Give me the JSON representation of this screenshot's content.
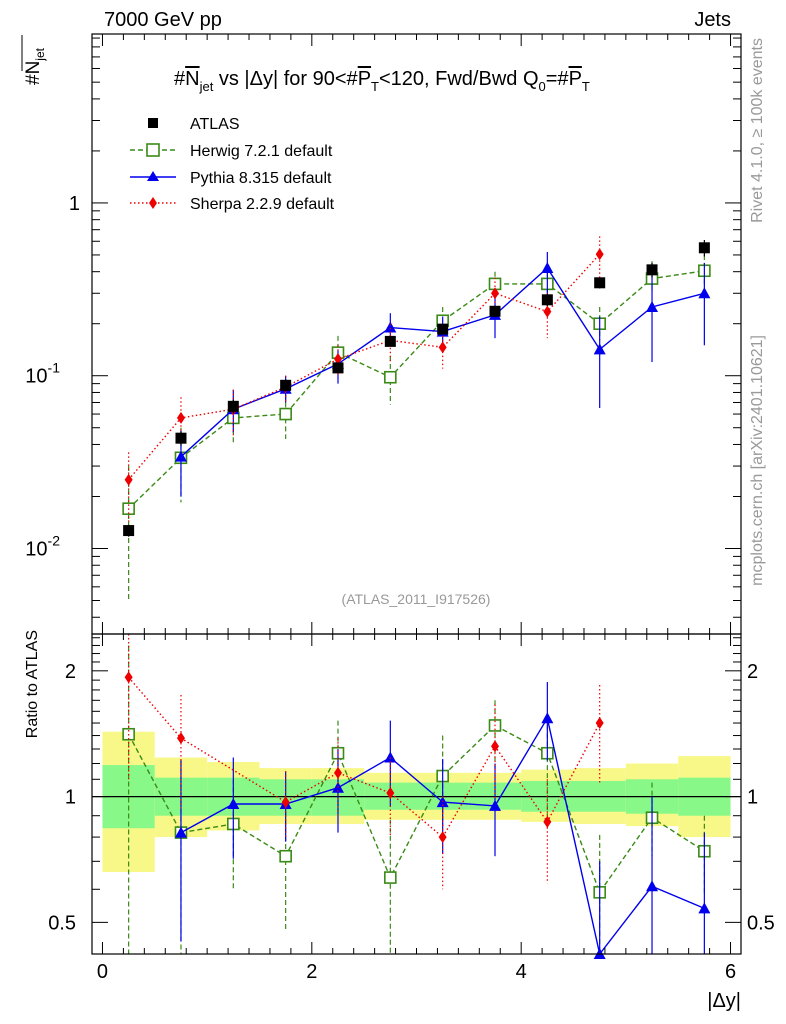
{
  "header": {
    "left": "7000 GeV pp",
    "right": "Jets"
  },
  "side_labels": {
    "top": "Rivet 4.1.0, ≥ 100k events",
    "bottom": "mcplots.cern.ch [arXiv:2401.10621]"
  },
  "watermark": "(ATLAS_2011_I917526)",
  "colors": {
    "atlas": "#000000",
    "herwig": "#3a8a16",
    "pythia": "#0000ee",
    "sherpa": "#ee0000",
    "band_inner": "#88f888",
    "band_outer": "#f8f888"
  },
  "chart_data": [
    {
      "type": "scatter",
      "panel": "main",
      "title_parts": {
        "prefix": "#",
        "njet": "N",
        "njet_sub": "jet",
        "middle": " vs |Δy| for 90<#",
        "pt": "P",
        "pt_sub": "T",
        "suffix": "<120, Fwd/Bwd Q",
        "q_sub": "0",
        "eq": "=#"
      },
      "ylabel": {
        "main": "#N",
        "sub": "jet"
      },
      "yscale": "log",
      "ylim": [
        0.0032,
        9.5
      ],
      "xlim": [
        -0.1,
        6.1
      ],
      "yticks": [
        {
          "value": 0.01,
          "label": "10",
          "exp": "-2"
        },
        {
          "value": 0.1,
          "label": "10",
          "exp": "-1"
        },
        {
          "value": 1,
          "label": "1",
          "exp": ""
        }
      ],
      "legend_position": "top-left",
      "legend": [
        {
          "name": "ATLAS",
          "marker": "square",
          "color": "#000000"
        },
        {
          "name": "Herwig 7.2.1 default",
          "marker": "open-square",
          "color": "#3a8a16"
        },
        {
          "name": "Pythia 8.315 default",
          "marker": "triangle",
          "color": "#0000ee"
        },
        {
          "name": "Sherpa 2.2.9 default",
          "marker": "diamond",
          "color": "#ee0000"
        }
      ],
      "x": [
        0.25,
        0.75,
        1.25,
        1.75,
        2.25,
        2.75,
        3.25,
        3.75,
        4.25,
        4.75,
        5.25,
        5.75
      ],
      "series": [
        {
          "name": "ATLAS",
          "values": [
            0.0127,
            0.0435,
            0.0665,
            0.088,
            0.111,
            0.158,
            0.186,
            0.236,
            0.275,
            0.345,
            0.41,
            0.55
          ],
          "err": [
            0.001,
            0.004,
            0.006,
            0.007,
            0.008,
            0.01,
            0.012,
            0.018,
            0.022,
            0.025,
            0.04,
            0.06
          ]
        },
        {
          "name": "Herwig 7.2.1 default",
          "values": [
            0.017,
            0.0335,
            0.057,
            0.06,
            0.136,
            0.098,
            0.208,
            0.34,
            0.34,
            0.2,
            0.365,
            0.405
          ],
          "lo": [
            0.005,
            0.0185,
            0.04,
            0.043,
            0.1,
            0.068,
            0.17,
            0.29,
            0.28,
            0.16,
            0.3,
            0.33
          ],
          "hi": [
            0.03,
            0.05,
            0.075,
            0.078,
            0.17,
            0.13,
            0.25,
            0.4,
            0.4,
            0.25,
            0.46,
            0.5
          ]
        },
        {
          "name": "Pythia 8.315 default",
          "values": [
            null,
            0.034,
            0.064,
            0.084,
            0.117,
            0.19,
            0.18,
            0.225,
            0.42,
            0.142,
            0.25,
            0.3
          ],
          "lo": [
            null,
            0.02,
            0.047,
            0.07,
            0.09,
            0.15,
            0.14,
            0.165,
            0.29,
            0.065,
            0.12,
            0.15
          ],
          "hi": [
            null,
            0.048,
            0.083,
            0.1,
            0.14,
            0.23,
            0.22,
            0.29,
            0.52,
            0.22,
            0.38,
            0.45
          ]
        },
        {
          "name": "Sherpa 2.2.9 default",
          "values": [
            0.025,
            0.057,
            0.064,
            0.086,
            0.125,
            0.16,
            0.146,
            0.3,
            0.235,
            0.505,
            null,
            null
          ],
          "lo": [
            0.014,
            0.04,
            0.045,
            0.07,
            0.1,
            0.12,
            0.11,
            0.23,
            0.165,
            0.37,
            null,
            null
          ],
          "hi": [
            0.036,
            0.075,
            0.083,
            0.1,
            0.15,
            0.2,
            0.18,
            0.37,
            0.3,
            0.64,
            null,
            null
          ]
        }
      ]
    },
    {
      "type": "scatter",
      "panel": "ratio",
      "ylabel": "Ratio to ATLAS",
      "xlabel": "|Δy|",
      "yscale": "log",
      "ylim": [
        0.42,
        2.45
      ],
      "xlim": [
        -0.1,
        6.1
      ],
      "yticks": [
        0.5,
        1,
        2
      ],
      "xticks": [
        0,
        2,
        4,
        6
      ],
      "bands": {
        "x_edges": [
          0,
          0.5,
          1,
          1.5,
          2,
          2.5,
          3,
          3.5,
          4,
          4.5,
          5,
          5.5,
          6
        ],
        "inner_lo": [
          0.84,
          0.9,
          0.9,
          0.9,
          0.9,
          0.93,
          0.93,
          0.93,
          0.92,
          0.92,
          0.91,
          0.9
        ],
        "inner_hi": [
          1.19,
          1.11,
          1.11,
          1.1,
          1.1,
          1.08,
          1.08,
          1.08,
          1.09,
          1.09,
          1.1,
          1.11
        ],
        "outer_lo": [
          0.66,
          0.8,
          0.83,
          0.86,
          0.86,
          0.88,
          0.88,
          0.88,
          0.87,
          0.86,
          0.85,
          0.8
        ],
        "outer_hi": [
          1.43,
          1.24,
          1.21,
          1.17,
          1.17,
          1.14,
          1.14,
          1.14,
          1.16,
          1.17,
          1.2,
          1.25
        ]
      },
      "x": [
        0.25,
        0.75,
        1.25,
        1.75,
        2.25,
        2.75,
        3.25,
        3.75,
        4.25,
        4.75,
        5.25,
        5.75
      ],
      "series": [
        {
          "name": "Herwig 7.2.1 default",
          "values": [
            1.41,
            0.82,
            0.86,
            0.72,
            1.27,
            0.64,
            1.12,
            1.48,
            1.27,
            0.59,
            0.89,
            0.74
          ],
          "lo": [
            0.3,
            0.41,
            0.6,
            0.48,
            0.92,
            0.4,
            0.85,
            1.15,
            0.9,
            0.38,
            0.72,
            0.58
          ],
          "hi": [
            2.3,
            1.22,
            1.1,
            0.96,
            1.52,
            0.88,
            1.4,
            1.7,
            1.55,
            0.81,
            1.08,
            0.9
          ]
        },
        {
          "name": "Pythia 8.315 default",
          "values": [
            null,
            0.82,
            0.96,
            0.96,
            1.05,
            1.24,
            0.97,
            0.95,
            1.54,
            0.41,
            0.61,
            0.54
          ],
          "lo": [
            null,
            0.45,
            0.71,
            0.78,
            0.82,
            0.95,
            0.73,
            0.72,
            1.22,
            0.3,
            0.3,
            0.3
          ],
          "hi": [
            null,
            1.22,
            1.24,
            1.15,
            1.3,
            1.52,
            1.23,
            1.2,
            1.88,
            0.7,
            1.0,
            0.82
          ]
        },
        {
          "name": "Sherpa 2.2.9 default",
          "values": [
            1.93,
            1.38,
            null,
            0.97,
            1.14,
            1.02,
            0.8,
            1.32,
            0.87,
            1.5,
            null,
            null
          ],
          "lo": [
            1.1,
            0.93,
            null,
            0.8,
            0.9,
            0.8,
            0.6,
            0.98,
            0.62,
            1.08,
            null,
            null
          ],
          "hi": [
            2.5,
            1.75,
            null,
            1.15,
            1.38,
            1.24,
            1.0,
            1.66,
            1.1,
            1.85,
            null,
            null
          ]
        }
      ]
    }
  ]
}
